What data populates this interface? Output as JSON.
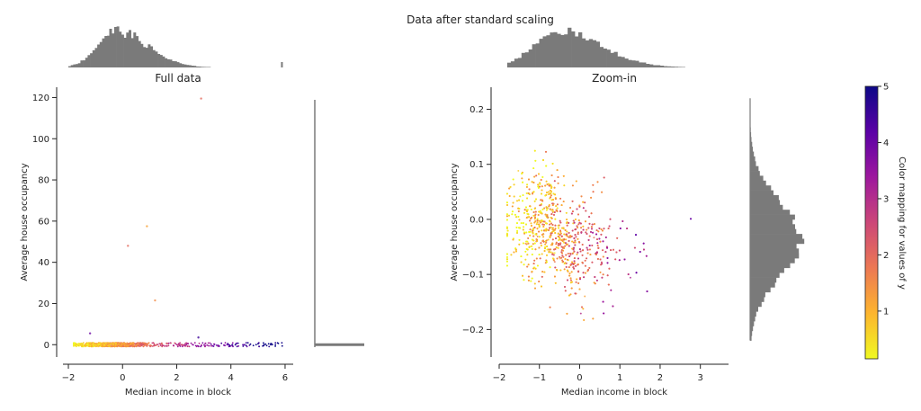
{
  "suptitle": "Data after standard scaling",
  "colors": {
    "axis": "#222222",
    "hist": "#7a7a7a",
    "cmap": [
      "#f0f921",
      "#fdb42f",
      "#ed7953",
      "#cc4778",
      "#9c179e",
      "#5c01a6",
      "#0d0887"
    ]
  },
  "chart_data": [
    {
      "name": "full-data",
      "type": "scatter",
      "title": "Full data",
      "xlabel": "Median income in block",
      "ylabel": "Average house occupancy",
      "xlim": [
        -2.2,
        6.3
      ],
      "ylim": [
        -6,
        125
      ],
      "xticks": [
        "−2",
        "0",
        "2",
        "4",
        "6"
      ],
      "xtick_values": [
        -2,
        0,
        2,
        4,
        6
      ],
      "yticks": [
        "0",
        "20",
        "40",
        "60",
        "80",
        "100",
        "120"
      ],
      "ytick_values": [
        0,
        20,
        40,
        60,
        80,
        100,
        120
      ],
      "outliers": [
        {
          "x": 2.9,
          "y": 119.5,
          "c": 2.0
        },
        {
          "x": 0.9,
          "y": 57.5,
          "c": 1.2
        },
        {
          "x": 0.2,
          "y": 48,
          "c": 2.0
        },
        {
          "x": 1.2,
          "y": 21.5,
          "c": 1.5
        },
        {
          "x": -1.2,
          "y": 5.5,
          "c": 4.0
        },
        {
          "x": 2.8,
          "y": 3.5,
          "c": 4.5
        }
      ],
      "cluster": {
        "x_range": [
          -1.8,
          5.9
        ],
        "y_center": 0,
        "y_spread": 1.2
      },
      "top_histogram": {
        "x_range": [
          -2,
          6
        ],
        "peak_x": -0.3
      },
      "right_histogram": {
        "note": "concentrated near 0"
      }
    },
    {
      "name": "zoom-in",
      "type": "scatter",
      "title": "Zoom-in",
      "xlabel": "Median income in block",
      "ylabel": "Average house occupancy",
      "xlim": [
        -2.0,
        3.7
      ],
      "ylim": [
        -0.25,
        0.24
      ],
      "xticks": [
        "−2",
        "−1",
        "0",
        "1",
        "2",
        "3"
      ],
      "xtick_values": [
        -2,
        -1,
        0,
        1,
        2,
        3
      ],
      "yticks": [
        "−0.2",
        "−0.1",
        "0.0",
        "0.1",
        "0.2"
      ],
      "ytick_values": [
        -0.2,
        -0.1,
        0.0,
        0.1,
        0.2
      ],
      "cluster": {
        "x_range": [
          -1.8,
          3.5
        ],
        "y_range": [
          -0.22,
          0.22
        ],
        "peak_x": -0.6,
        "peak_y": -0.04
      },
      "top_histogram": {
        "x_range": [
          -1.8,
          3.5
        ],
        "peak_x": -0.6
      },
      "right_histogram": {
        "y_range": [
          -0.22,
          0.22
        ],
        "peak_y": -0.04
      }
    }
  ],
  "colorbar": {
    "label": "Color mapping for values of y",
    "range": [
      0.15,
      5
    ],
    "ticks": [
      "1",
      "2",
      "3",
      "4",
      "5"
    ],
    "tick_values": [
      1,
      2,
      3,
      4,
      5
    ]
  }
}
